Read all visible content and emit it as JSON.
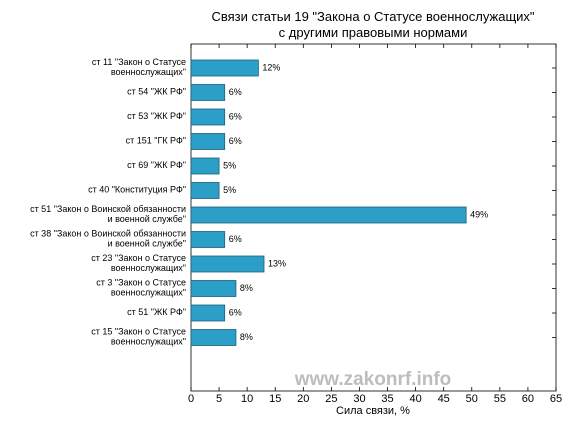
{
  "chart_data": {
    "type": "barh",
    "title": "Связи статьи 19 \"Закона о Статусе военнослужащих\"\nс другими правовыми нормами",
    "xlabel": "Сила связи, %",
    "categories": [
      "ст 11 \"Закон о Статусе\nвоеннослужащих\"",
      "ст 54 \"ЖК РФ\"",
      "ст 53 \"ЖК РФ\"",
      "ст 151 \"ГК РФ\"",
      "ст 69 \"ЖК РФ\"",
      "ст 40 \"Конституция РФ\"",
      "ст 51 \"Закон о Воинской обязанности\nи военной службе\"",
      "ст 38 \"Закон о Воинской обязанности\nи военной службе\"",
      "ст 23 \"Закон о Статусе\nвоеннослужащих\"",
      "ст 3 \"Закон о Статусе\nвоеннослужащих\"",
      "ст 51 \"ЖК РФ\"",
      "ст 15 \"Закон о Статусе\nвоеннослужащих\""
    ],
    "values": [
      12,
      6,
      6,
      6,
      5,
      5,
      49,
      6,
      13,
      8,
      6,
      8
    ],
    "value_labels": [
      "12%",
      "6%",
      "6%",
      "6%",
      "5%",
      "5%",
      "49%",
      "6%",
      "13%",
      "8%",
      "6%",
      "8%"
    ],
    "color": "#2b9fc7",
    "xlim": [
      0,
      65
    ],
    "xticks": [
      0,
      5,
      10,
      15,
      20,
      25,
      30,
      35,
      40,
      45,
      50,
      55,
      60,
      65
    ],
    "watermark": "www.zakonrf.info"
  }
}
